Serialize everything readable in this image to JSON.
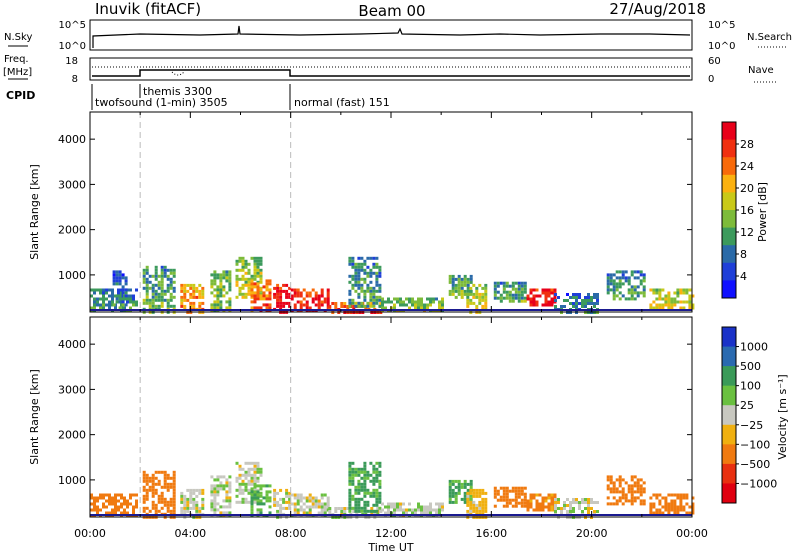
{
  "header": {
    "station": "Inuvik (fitACF)",
    "beam": "Beam 00",
    "date": "27/Aug/2018"
  },
  "params": {
    "nsky_label": "N.Sky",
    "nsearch_label": "N.Search",
    "nsky_ticks": [
      "10^5",
      "10^0"
    ],
    "nsearch_ticks": [
      "10^5",
      "10^0"
    ],
    "freq_label": "Freq.",
    "freq_unit": "[MHz]",
    "freq_ticks": [
      "18",
      "8"
    ],
    "nave_label": "Nave",
    "nave_ticks": [
      "60",
      "0"
    ],
    "cpid_label": "CPID",
    "cpid_segments": [
      {
        "text": "twofsound (1-min) 3505",
        "start_h": 0,
        "end_h": 2
      },
      {
        "text": "themis 3300",
        "start_h": 2,
        "end_h": 8
      },
      {
        "text": "normal (fast) 151",
        "start_h": 8,
        "end_h": 24
      }
    ]
  },
  "chart_data": [
    {
      "type": "heatmap",
      "name": "power",
      "xlabel": "",
      "ylabel": "Slant Range [km]",
      "xlim": [
        0,
        24
      ],
      "ylim": [
        180,
        4600
      ],
      "yticks": [
        1000,
        2000,
        3000,
        4000
      ],
      "colorbar_label": "Power [dB]",
      "colorbar_ticks": [
        "28",
        "24",
        "20",
        "16",
        "12",
        "8",
        "4"
      ],
      "colorbar_colors": [
        "#e8001a",
        "#f03010",
        "#f86a0a",
        "#fbb110",
        "#c9c918",
        "#7dbb3a",
        "#3c9a5c",
        "#2a6aa8",
        "#1f3fd8",
        "#1010ff"
      ],
      "patches": [
        {
          "t0": 0.0,
          "t1": 1.9,
          "r0": 200,
          "r1": 700,
          "level": 8
        },
        {
          "t0": 0.9,
          "t1": 1.4,
          "r0": 300,
          "r1": 1100,
          "level": 6
        },
        {
          "t0": 2.1,
          "t1": 3.4,
          "r0": 200,
          "r1": 1200,
          "level": 10
        },
        {
          "t0": 3.6,
          "t1": 4.5,
          "r0": 200,
          "r1": 800,
          "level": 20
        },
        {
          "t0": 4.8,
          "t1": 5.6,
          "r0": 200,
          "r1": 1100,
          "level": 12
        },
        {
          "t0": 5.8,
          "t1": 6.8,
          "r0": 500,
          "r1": 1400,
          "level": 14
        },
        {
          "t0": 6.4,
          "t1": 7.2,
          "r0": 200,
          "r1": 900,
          "level": 22
        },
        {
          "t0": 7.3,
          "t1": 8.0,
          "r0": 200,
          "r1": 800,
          "level": 28
        },
        {
          "t0": 8.0,
          "t1": 9.5,
          "r0": 200,
          "r1": 700,
          "level": 26
        },
        {
          "t0": 9.5,
          "t1": 11.6,
          "r0": 200,
          "r1": 400,
          "level": 24
        },
        {
          "t0": 10.3,
          "t1": 11.5,
          "r0": 300,
          "r1": 1400,
          "level": 9
        },
        {
          "t0": 11.6,
          "t1": 14.0,
          "r0": 200,
          "r1": 500,
          "level": 13
        },
        {
          "t0": 14.3,
          "t1": 15.2,
          "r0": 500,
          "r1": 1000,
          "level": 11
        },
        {
          "t0": 15.0,
          "t1": 15.8,
          "r0": 200,
          "r1": 800,
          "level": 15
        },
        {
          "t0": 16.1,
          "t1": 17.4,
          "r0": 400,
          "r1": 850,
          "level": 10
        },
        {
          "t0": 17.4,
          "t1": 18.5,
          "r0": 350,
          "r1": 700,
          "level": 27
        },
        {
          "t0": 18.5,
          "t1": 20.2,
          "r0": 200,
          "r1": 600,
          "level": 7
        },
        {
          "t0": 20.6,
          "t1": 22.1,
          "r0": 500,
          "r1": 1100,
          "level": 9
        },
        {
          "t0": 22.3,
          "t1": 24.0,
          "r0": 300,
          "r1": 700,
          "level": 16
        }
      ]
    },
    {
      "type": "heatmap",
      "name": "velocity",
      "xlabel": "Time UT",
      "ylabel": "Slant Range [km]",
      "xlim": [
        0,
        24
      ],
      "ylim": [
        180,
        4600
      ],
      "xticks": [
        "00:00",
        "04:00",
        "08:00",
        "12:00",
        "16:00",
        "20:00",
        "00:00"
      ],
      "yticks": [
        1000,
        2000,
        3000,
        4000
      ],
      "colorbar_label": "Velocity [m s⁻¹]",
      "colorbar_ticks": [
        "1000",
        "500",
        "100",
        "25",
        "−25",
        "−100",
        "−500",
        "−1000"
      ],
      "colorbar_colors": [
        "#1a32c8",
        "#2a6ab0",
        "#3a9a58",
        "#6ac040",
        "#c8c8c0",
        "#f0b010",
        "#f07a10",
        "#e83010",
        "#e00010"
      ],
      "patches": [
        {
          "t0": 0.0,
          "t1": 1.9,
          "r0": 200,
          "r1": 700,
          "level": -150
        },
        {
          "t0": 2.1,
          "t1": 3.4,
          "r0": 200,
          "r1": 1200,
          "level": -200
        },
        {
          "t0": 3.6,
          "t1": 4.5,
          "r0": 200,
          "r1": 800,
          "level": 0
        },
        {
          "t0": 4.8,
          "t1": 5.6,
          "r0": 200,
          "r1": 1100,
          "level": 5
        },
        {
          "t0": 5.8,
          "t1": 6.8,
          "r0": 500,
          "r1": 1400,
          "level": 10
        },
        {
          "t0": 6.4,
          "t1": 7.2,
          "r0": 200,
          "r1": 900,
          "level": 60
        },
        {
          "t0": 7.3,
          "t1": 8.0,
          "r0": 200,
          "r1": 800,
          "level": -10
        },
        {
          "t0": 8.0,
          "t1": 9.5,
          "r0": 200,
          "r1": 700,
          "level": 0
        },
        {
          "t0": 9.5,
          "t1": 11.6,
          "r0": 200,
          "r1": 400,
          "level": 5
        },
        {
          "t0": 10.3,
          "t1": 11.5,
          "r0": 300,
          "r1": 1400,
          "level": 80
        },
        {
          "t0": 11.6,
          "t1": 14.0,
          "r0": 200,
          "r1": 500,
          "level": 10
        },
        {
          "t0": 14.3,
          "t1": 15.2,
          "r0": 500,
          "r1": 1000,
          "level": 70
        },
        {
          "t0": 15.0,
          "t1": 15.8,
          "r0": 200,
          "r1": 800,
          "level": -60
        },
        {
          "t0": 16.1,
          "t1": 17.4,
          "r0": 400,
          "r1": 850,
          "level": -150
        },
        {
          "t0": 17.4,
          "t1": 18.5,
          "r0": 350,
          "r1": 700,
          "level": -120
        },
        {
          "t0": 18.5,
          "t1": 20.2,
          "r0": 200,
          "r1": 600,
          "level": 5
        },
        {
          "t0": 20.6,
          "t1": 22.1,
          "r0": 500,
          "r1": 1100,
          "level": -300
        },
        {
          "t0": 22.3,
          "t1": 24.0,
          "r0": 300,
          "r1": 700,
          "level": -150
        }
      ]
    }
  ]
}
